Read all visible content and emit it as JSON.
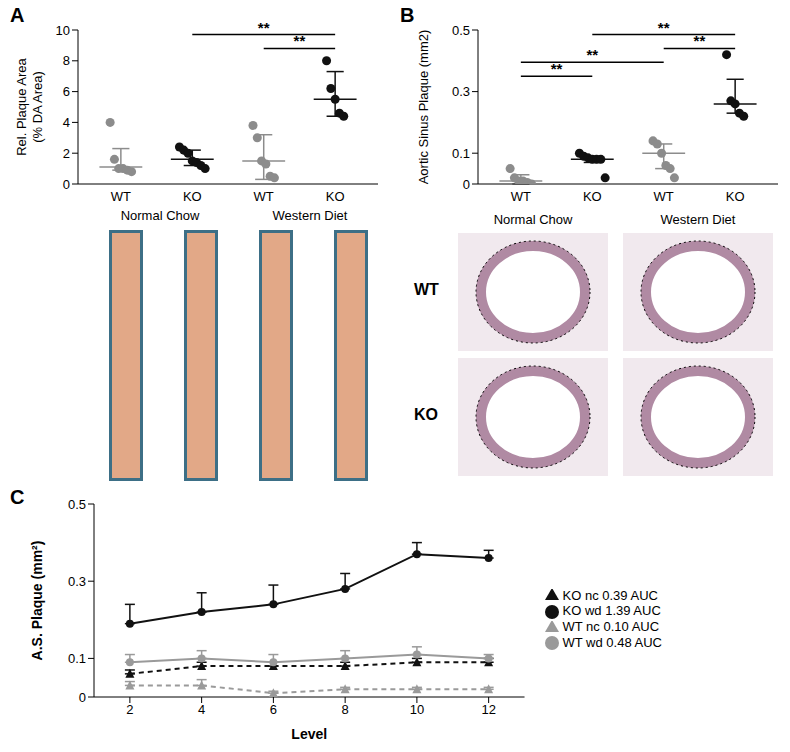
{
  "chart_data": [
    {
      "type": "scatter",
      "title": "A",
      "ylabel": [
        "Rel. Plaque Area",
        "(% DA Area)"
      ],
      "categories": [
        "WT",
        "KO",
        "WT",
        "KO"
      ],
      "ylim": [
        0,
        10
      ],
      "yticks": [
        0,
        2,
        4,
        6,
        8,
        10
      ],
      "groups": [
        {
          "color": "#8c8c8c",
          "values": [
            4.0,
            1.6,
            1.0,
            1.0,
            0.9,
            0.8
          ],
          "center": 1.1,
          "error": [
            0.9,
            2.3
          ]
        },
        {
          "color": "#111111",
          "values": [
            2.4,
            2.2,
            2.0,
            1.5,
            1.4,
            1.2,
            1.0
          ],
          "center": 1.6,
          "error": [
            1.2,
            2.2
          ]
        },
        {
          "color": "#8c8c8c",
          "values": [
            3.8,
            3.0,
            1.5,
            1.3,
            0.5,
            0.4
          ],
          "center": 1.5,
          "error": [
            0.3,
            3.2
          ]
        },
        {
          "color": "#111111",
          "values": [
            8.0,
            6.2,
            5.5,
            4.6,
            4.4
          ],
          "center": 5.5,
          "error": [
            4.4,
            7.3
          ]
        }
      ],
      "annotations": [
        {
          "from": 1,
          "to": 3,
          "label": "**"
        },
        {
          "from": 2,
          "to": 3,
          "label": "**"
        }
      ]
    },
    {
      "type": "scatter",
      "title": "B",
      "ylabel": [
        "Aortic Sinus Plaque (mm2)"
      ],
      "categories": [
        "WT",
        "KO",
        "WT",
        "KO"
      ],
      "ylim": [
        0,
        0.5
      ],
      "yticks": [
        0,
        0.1,
        0.3,
        0.5
      ],
      "groups": [
        {
          "color": "#8c8c8c",
          "values": [
            0.05,
            0.02,
            0.01,
            0.01,
            0.005,
            0.0
          ],
          "center": 0.01,
          "error": [
            0.0,
            0.03
          ]
        },
        {
          "color": "#111111",
          "values": [
            0.1,
            0.09,
            0.085,
            0.08,
            0.08,
            0.08,
            0.02
          ],
          "center": 0.08,
          "error": [
            0.07,
            0.09
          ]
        },
        {
          "color": "#8c8c8c",
          "values": [
            0.14,
            0.13,
            0.1,
            0.06,
            0.05,
            0.02
          ],
          "center": 0.1,
          "error": [
            0.05,
            0.13
          ]
        },
        {
          "color": "#111111",
          "values": [
            0.42,
            0.27,
            0.26,
            0.23,
            0.22
          ],
          "center": 0.26,
          "error": [
            0.23,
            0.34
          ]
        }
      ],
      "annotations": [
        {
          "from": 1,
          "to": 3,
          "label": "**"
        },
        {
          "from": 2,
          "to": 3,
          "label": "**"
        },
        {
          "from": 0,
          "to": 2,
          "label": "**"
        },
        {
          "from": 0,
          "to": 1,
          "label": "**"
        }
      ]
    },
    {
      "type": "line",
      "title": "C",
      "xlabel": "Level",
      "ylabel": "A.S. Plaque (mm²)",
      "x": [
        2,
        4,
        6,
        8,
        10,
        12
      ],
      "xlim": [
        1,
        13
      ],
      "xticks": [
        2,
        4,
        6,
        8,
        10,
        12
      ],
      "ylim": [
        0,
        0.5
      ],
      "yticks": [
        0,
        0.1,
        0.3,
        0.5
      ],
      "legend": "right",
      "series": [
        {
          "name": "WT nc 0.10 AUC",
          "color": "#9a9a9a",
          "line_style": "dashed",
          "marker": "triangle",
          "values": [
            0.03,
            0.03,
            0.01,
            0.02,
            0.02,
            0.02
          ],
          "errors": [
            0.01,
            0.015,
            0.005,
            0.005,
            0.005,
            0.005
          ]
        },
        {
          "name": "KO nc 0.39 AUC",
          "color": "#111111",
          "line_style": "dashed",
          "marker": "triangle",
          "values": [
            0.06,
            0.08,
            0.08,
            0.08,
            0.09,
            0.09
          ],
          "errors": [
            0.01,
            0.01,
            0.01,
            0.01,
            0.01,
            0.01
          ]
        },
        {
          "name": "WT wd 0.48 AUC",
          "color": "#9a9a9a",
          "line_style": "solid",
          "marker": "circle",
          "values": [
            0.09,
            0.1,
            0.09,
            0.1,
            0.11,
            0.1
          ],
          "errors": [
            0.02,
            0.02,
            0.02,
            0.02,
            0.02,
            0.01
          ]
        },
        {
          "name": "KO wd 1.39 AUC",
          "color": "#111111",
          "line_style": "solid",
          "marker": "circle",
          "values": [
            0.19,
            0.22,
            0.24,
            0.28,
            0.37,
            0.36
          ],
          "errors": [
            0.05,
            0.05,
            0.05,
            0.04,
            0.03,
            0.02
          ]
        }
      ]
    }
  ],
  "images": {
    "A": {
      "columns": [
        "Normal Chow",
        "Western Diet"
      ]
    },
    "B": {
      "columns": [
        "Normal Chow",
        "Western Diet"
      ],
      "rows": [
        "WT",
        "KO"
      ]
    }
  }
}
